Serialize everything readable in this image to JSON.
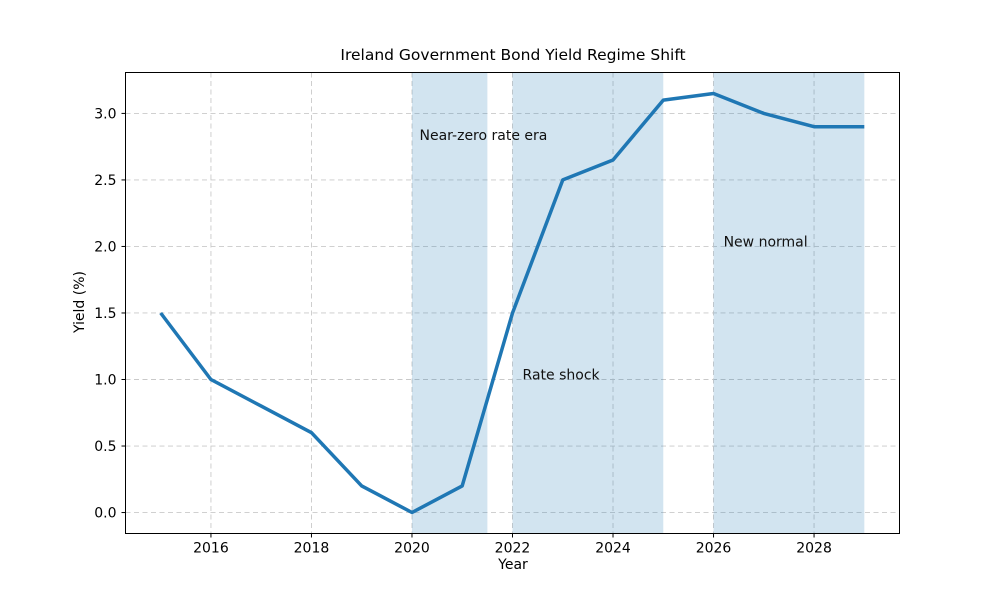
{
  "chart_data": {
    "type": "line",
    "title": "Ireland Government Bond Yield Regime Shift",
    "xlabel": "Year",
    "ylabel": "Yield (%)",
    "x": [
      2015,
      2016,
      2017,
      2018,
      2019,
      2020,
      2021,
      2022,
      2023,
      2024,
      2025,
      2026,
      2027,
      2028,
      2029
    ],
    "y": [
      1.5,
      1.0,
      0.8,
      0.6,
      0.2,
      0.0,
      0.2,
      1.5,
      2.5,
      2.65,
      3.1,
      3.15,
      3.0,
      2.9,
      2.9
    ],
    "xlim": [
      2014.3,
      2029.7
    ],
    "ylim": [
      -0.1575,
      3.3075
    ],
    "xtick_labels": [
      "2016",
      "2018",
      "2020",
      "2022",
      "2024",
      "2026",
      "2028"
    ],
    "ytick_labels": [
      "0.0",
      "0.5",
      "1.0",
      "1.5",
      "2.0",
      "2.5",
      "3.0"
    ],
    "grid": true,
    "grid_style": "dashed",
    "grid_color": "#c9c9c9",
    "legend": "none",
    "line_color": "#1f77b4",
    "line_width": 3.5,
    "region_fill_color": "#1f77b4",
    "region_fill_opacity": 0.2,
    "shaded_regions": [
      {
        "label": "Near-zero rate era",
        "x_start": 2020.0,
        "x_end": 2021.5,
        "label_x": 2020.15,
        "label_y": 2.8
      },
      {
        "label": "Rate shock",
        "x_start": 2022.0,
        "x_end": 2025.0,
        "label_x": 2022.2,
        "label_y": 1.0
      },
      {
        "label": "New normal",
        "x_start": 2026.0,
        "x_end": 2029.0,
        "label_x": 2026.2,
        "label_y": 2.0
      }
    ]
  }
}
